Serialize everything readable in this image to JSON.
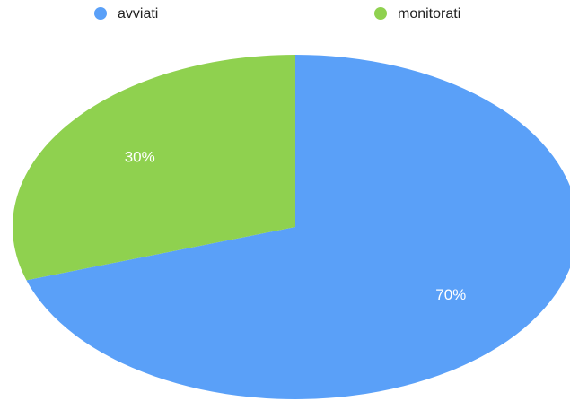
{
  "chart_data": {
    "type": "pie",
    "categories": [
      "avviati",
      "monitorati"
    ],
    "values": [
      70,
      30
    ],
    "value_labels": [
      "70%",
      "30%"
    ],
    "colors": [
      "#5aa0f8",
      "#8fd14f"
    ]
  }
}
